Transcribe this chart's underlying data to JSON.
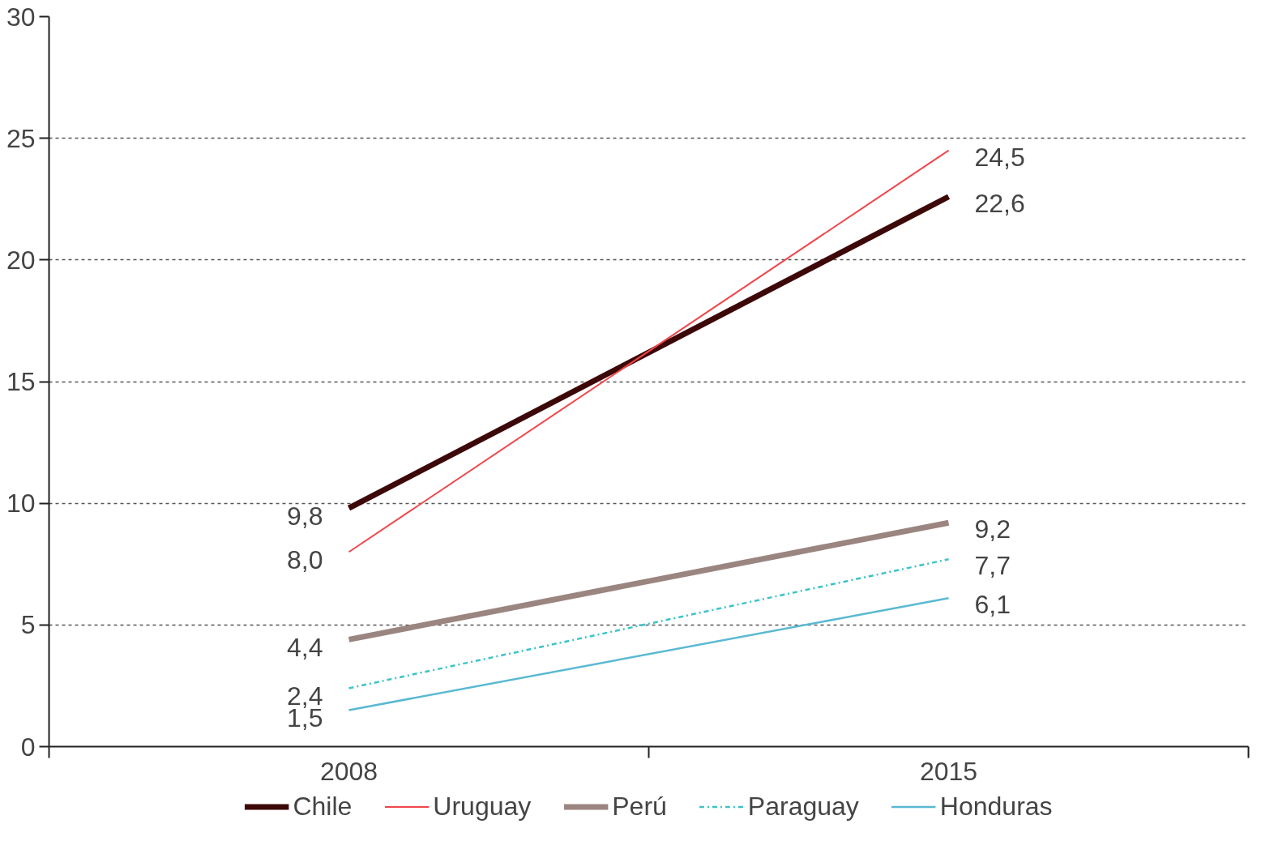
{
  "chart_data": {
    "type": "line",
    "categories": [
      "2008",
      "2015"
    ],
    "ylim": [
      0,
      30
    ],
    "yticks": [
      0,
      5,
      10,
      15,
      20,
      25,
      30
    ],
    "grid": "y",
    "legend": "bottom",
    "series": [
      {
        "name": "Chile",
        "color": "#3d0808",
        "values": [
          9.8,
          22.6
        ],
        "value_labels": [
          "9,8",
          "22,6"
        ]
      },
      {
        "name": "Uruguay",
        "color": "#f0464b",
        "values": [
          8.0,
          24.5
        ],
        "value_labels": [
          "8,0",
          "24,5"
        ]
      },
      {
        "name": "Perú",
        "color": "#9b8580",
        "values": [
          4.4,
          9.2
        ],
        "value_labels": [
          "4,4",
          "9,2"
        ]
      },
      {
        "name": "Paraguay",
        "color": "#3cc3c8",
        "values": [
          2.4,
          7.7
        ],
        "value_labels": [
          "2,4",
          "7,7"
        ],
        "line_style": "dashed"
      },
      {
        "name": "Honduras",
        "color": "#5ab9d2",
        "values": [
          1.5,
          6.1
        ],
        "value_labels": [
          "1,5",
          "6,1"
        ]
      }
    ]
  }
}
